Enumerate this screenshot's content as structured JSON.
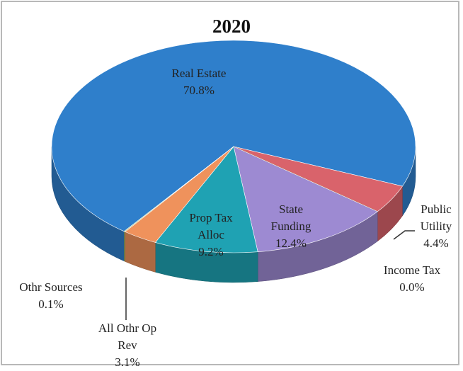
{
  "chart_data": {
    "type": "pie",
    "title": "2020",
    "categories": [
      "Real Estate",
      "Public Utility",
      "Income Tax",
      "State Funding",
      "Prop Tax Alloc",
      "All Othr Op Rev",
      "Othr Sources"
    ],
    "values": [
      70.8,
      4.4,
      0.0,
      12.4,
      9.2,
      3.1,
      0.1
    ],
    "value_labels": [
      "70.8%",
      "4.4%",
      "0.0%",
      "12.4%",
      "9.2%",
      "3.1%",
      "0.1%"
    ],
    "colors": [
      "#2f7fcb",
      "#d9636b",
      "#9a8a40",
      "#9d8ad2",
      "#1fa2b3",
      "#ef925c",
      "#a3b86c"
    ]
  }
}
